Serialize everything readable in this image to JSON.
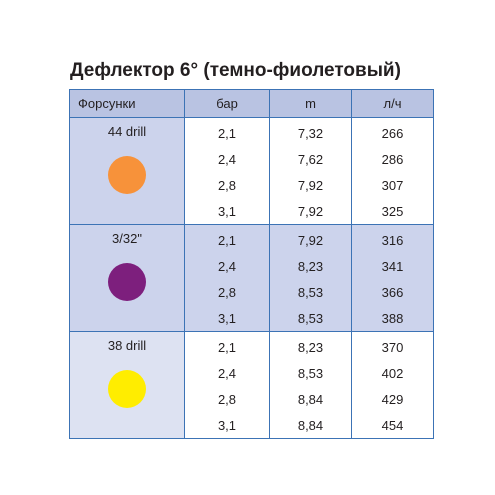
{
  "title": "Дефлектор 6° (темно-фиолетовый)",
  "headers": {
    "nozzle": "Форсунки",
    "pressure": "бар",
    "radius": "m",
    "flow": "л/ч"
  },
  "groups": [
    {
      "nozzle": "44 drill",
      "color": "#f7923a",
      "rows": [
        {
          "pressure": "2,1",
          "radius": "7,32",
          "flow": "266"
        },
        {
          "pressure": "2,4",
          "radius": "7,62",
          "flow": "286"
        },
        {
          "pressure": "2,8",
          "radius": "7,92",
          "flow": "307"
        },
        {
          "pressure": "3,1",
          "radius": "7,92",
          "flow": "325"
        }
      ]
    },
    {
      "nozzle": "3/32\"",
      "color": "#7d1f7d",
      "rows": [
        {
          "pressure": "2,1",
          "radius": "7,92",
          "flow": "316"
        },
        {
          "pressure": "2,4",
          "radius": "8,23",
          "flow": "341"
        },
        {
          "pressure": "2,8",
          "radius": "8,53",
          "flow": "366"
        },
        {
          "pressure": "3,1",
          "radius": "8,53",
          "flow": "388"
        }
      ]
    },
    {
      "nozzle": "38 drill",
      "color": "#ffed00",
      "rows": [
        {
          "pressure": "2,1",
          "radius": "8,23",
          "flow": "370"
        },
        {
          "pressure": "2,4",
          "radius": "8,53",
          "flow": "402"
        },
        {
          "pressure": "2,8",
          "radius": "8,84",
          "flow": "429"
        },
        {
          "pressure": "3,1",
          "radius": "8,84",
          "flow": "454"
        }
      ]
    }
  ]
}
